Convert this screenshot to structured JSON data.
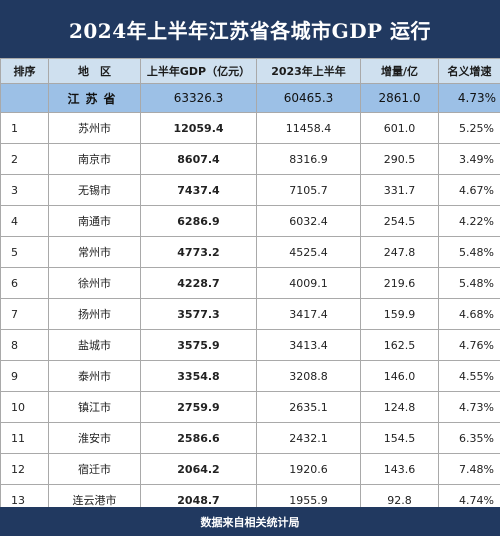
{
  "title": "2024年上半年江苏省各城市GDP 运行",
  "headers": [
    "排序",
    "地　区",
    "上半年GDP（亿元）",
    "2023年上半年",
    "增量/亿",
    "名义增速"
  ],
  "total": {
    "rank": "",
    "region": "江苏省",
    "gdp": "63326.3",
    "prev": "60465.3",
    "increment": "2861.0",
    "growth": "4.73%"
  },
  "rows": [
    {
      "rank": "1",
      "region": "苏州市",
      "gdp": "12059.4",
      "prev": "11458.4",
      "increment": "601.0",
      "growth": "5.25%"
    },
    {
      "rank": "2",
      "region": "南京市",
      "gdp": "8607.4",
      "prev": "8316.9",
      "increment": "290.5",
      "growth": "3.49%"
    },
    {
      "rank": "3",
      "region": "无锡市",
      "gdp": "7437.4",
      "prev": "7105.7",
      "increment": "331.7",
      "growth": "4.67%"
    },
    {
      "rank": "4",
      "region": "南通市",
      "gdp": "6286.9",
      "prev": "6032.4",
      "increment": "254.5",
      "growth": "4.22%"
    },
    {
      "rank": "5",
      "region": "常州市",
      "gdp": "4773.2",
      "prev": "4525.4",
      "increment": "247.8",
      "growth": "5.48%"
    },
    {
      "rank": "6",
      "region": "徐州市",
      "gdp": "4228.7",
      "prev": "4009.1",
      "increment": "219.6",
      "growth": "5.48%"
    },
    {
      "rank": "7",
      "region": "扬州市",
      "gdp": "3577.3",
      "prev": "3417.4",
      "increment": "159.9",
      "growth": "4.68%"
    },
    {
      "rank": "8",
      "region": "盐城市",
      "gdp": "3575.9",
      "prev": "3413.4",
      "increment": "162.5",
      "growth": "4.76%"
    },
    {
      "rank": "9",
      "region": "泰州市",
      "gdp": "3354.8",
      "prev": "3208.8",
      "increment": "146.0",
      "growth": "4.55%"
    },
    {
      "rank": "10",
      "region": "镇江市",
      "gdp": "2759.9",
      "prev": "2635.1",
      "increment": "124.8",
      "growth": "4.73%"
    },
    {
      "rank": "11",
      "region": "淮安市",
      "gdp": "2586.6",
      "prev": "2432.1",
      "increment": "154.5",
      "growth": "6.35%"
    },
    {
      "rank": "12",
      "region": "宿迁市",
      "gdp": "2064.2",
      "prev": "1920.6",
      "increment": "143.6",
      "growth": "7.48%"
    },
    {
      "rank": "13",
      "region": "连云港市",
      "gdp": "2048.7",
      "prev": "1955.9",
      "increment": "92.8",
      "growth": "4.74%"
    }
  ],
  "footer": "数据来自相关统计局",
  "colors": {
    "header_bg": "#213960",
    "column_header_bg": "#cfe0ef",
    "total_row_bg": "#9cc0e6"
  }
}
